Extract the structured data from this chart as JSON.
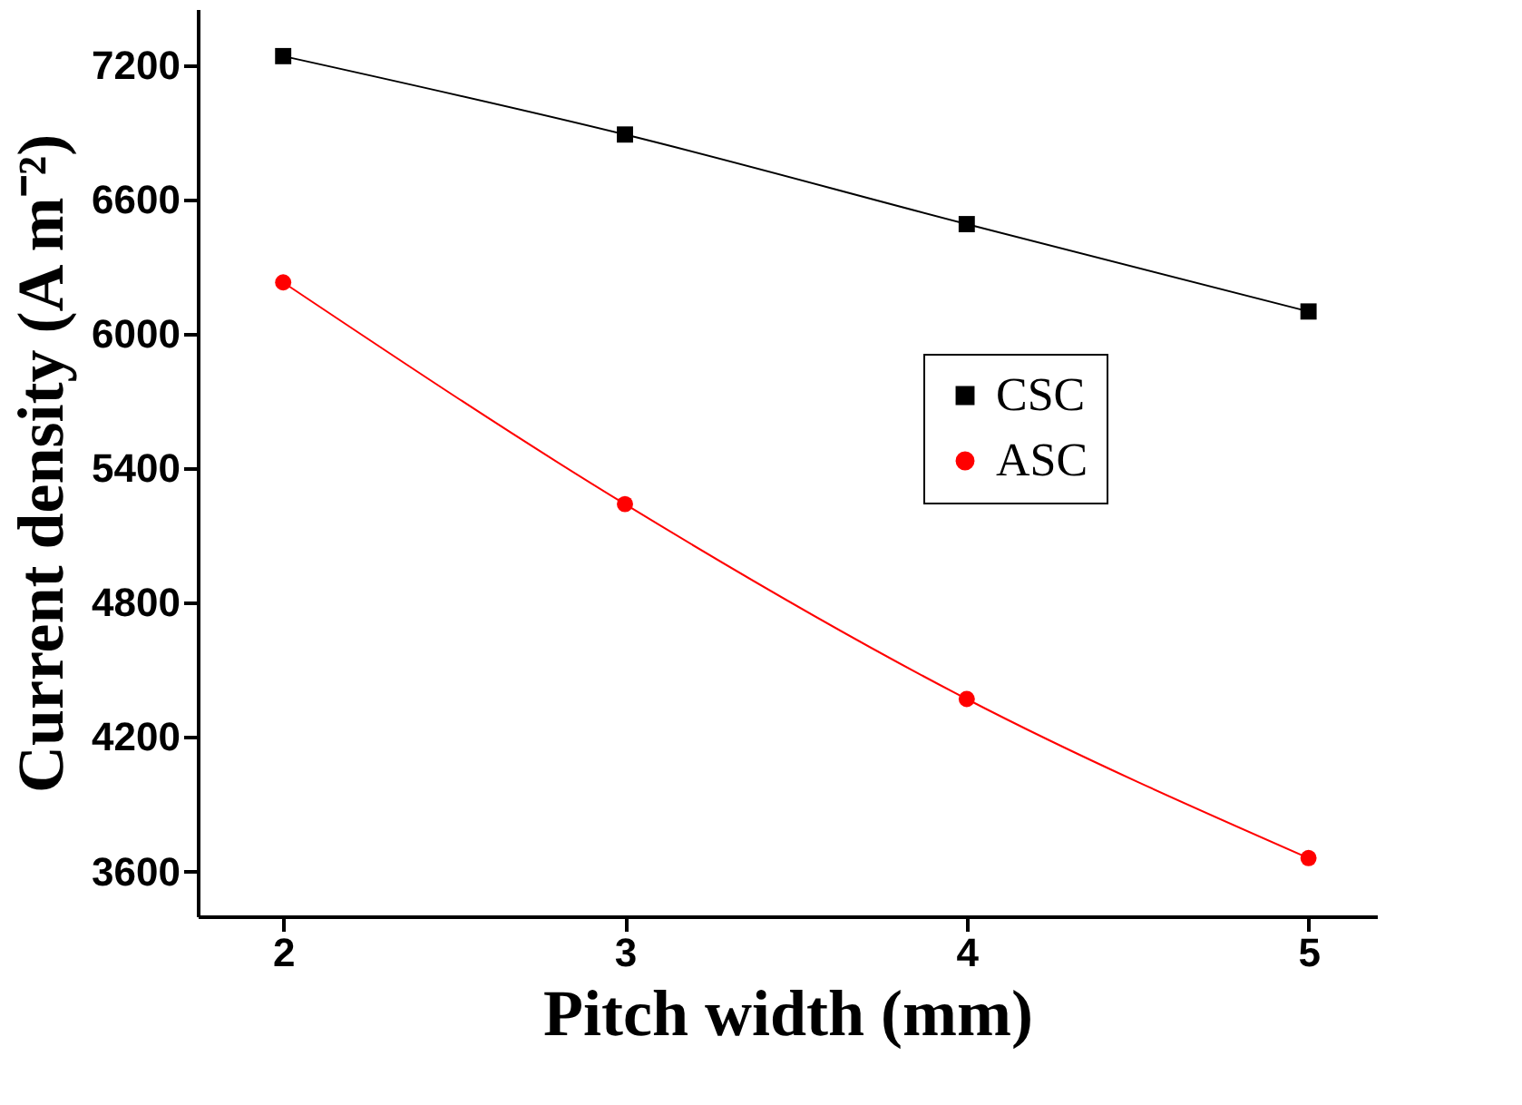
{
  "chart_data": {
    "type": "line",
    "xlabel": "Pitch width (mm)",
    "ylabel": "Current density (A m⁻²)",
    "x": [
      2,
      3,
      4,
      5
    ],
    "series": [
      {
        "name": "CSC",
        "color": "#000000",
        "marker": "square",
        "values": [
          7240,
          6890,
          6490,
          6100
        ]
      },
      {
        "name": "ASC",
        "color": "#ff0000",
        "marker": "circle",
        "values": [
          6230,
          5240,
          4370,
          3660
        ]
      }
    ],
    "xlim": [
      1.75,
      5.2
    ],
    "xticks": [
      2,
      3,
      4,
      5
    ],
    "ylim": [
      3400,
      7450
    ],
    "yticks": [
      3600,
      4200,
      4800,
      5400,
      6000,
      6600,
      7200
    ],
    "grid": false,
    "legend": "right",
    "line_style": "solid"
  }
}
